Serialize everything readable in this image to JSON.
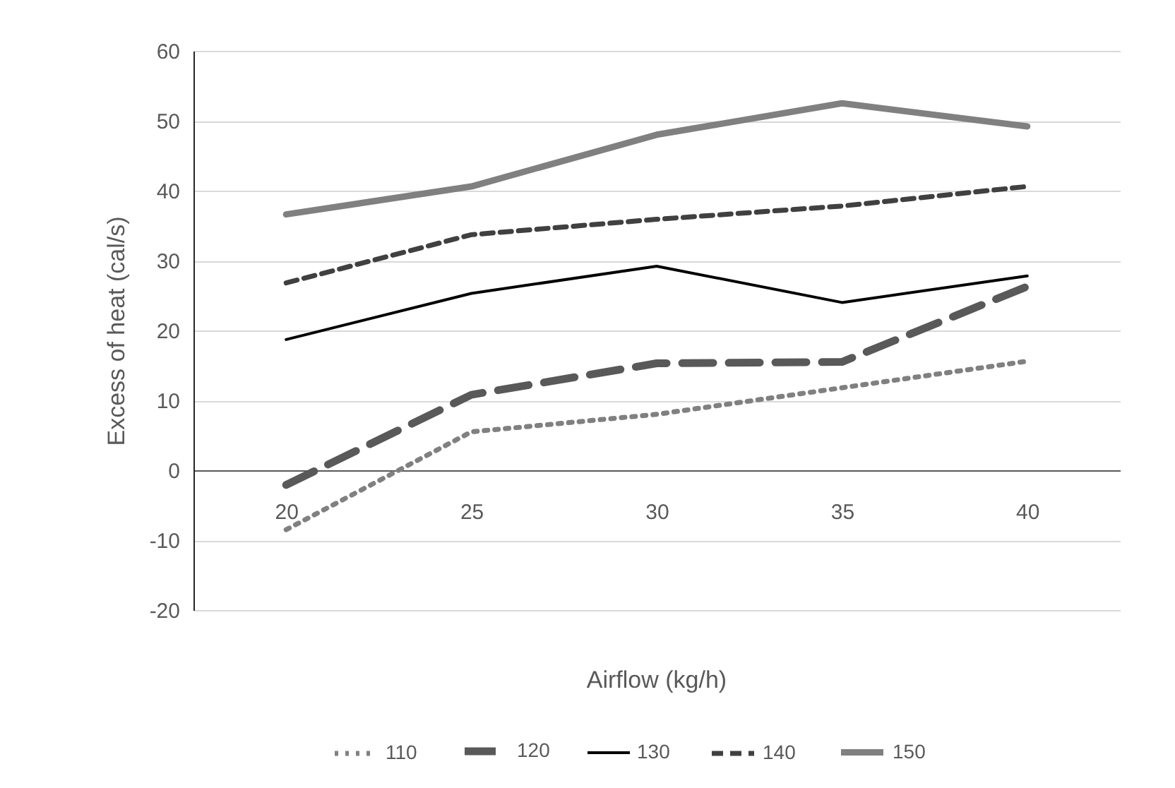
{
  "chart_data": {
    "type": "line",
    "xlabel": "Airflow (kg/h)",
    "ylabel": "Excess of heat (cal/s)",
    "categories": [
      "20",
      "25",
      "30",
      "35",
      "40"
    ],
    "ylim": [
      -20,
      60
    ],
    "yticks": [
      -20,
      -10,
      0,
      10,
      20,
      30,
      40,
      50,
      60
    ],
    "grid": "y",
    "legend": "bottom",
    "marker": "none",
    "series": [
      {
        "name": "110",
        "color": "#808080",
        "line_style": "dotted",
        "values": [
          -8.5,
          5.5,
          8.0,
          11.8,
          15.6
        ]
      },
      {
        "name": "120",
        "color": "#595959",
        "line_style": "dashed",
        "values": [
          -2.1,
          10.8,
          15.3,
          15.5,
          26.3
        ]
      },
      {
        "name": "130",
        "color": "#000000",
        "line_style": "solid",
        "values": [
          18.7,
          25.3,
          29.2,
          24.0,
          27.8
        ]
      },
      {
        "name": "140",
        "color": "#404040",
        "line_style": "dashed",
        "values": [
          26.8,
          33.7,
          35.9,
          37.8,
          40.6
        ]
      },
      {
        "name": "150",
        "color": "#808080",
        "line_style": "solid",
        "values": [
          36.6,
          40.6,
          48.0,
          52.5,
          49.2
        ]
      }
    ]
  }
}
